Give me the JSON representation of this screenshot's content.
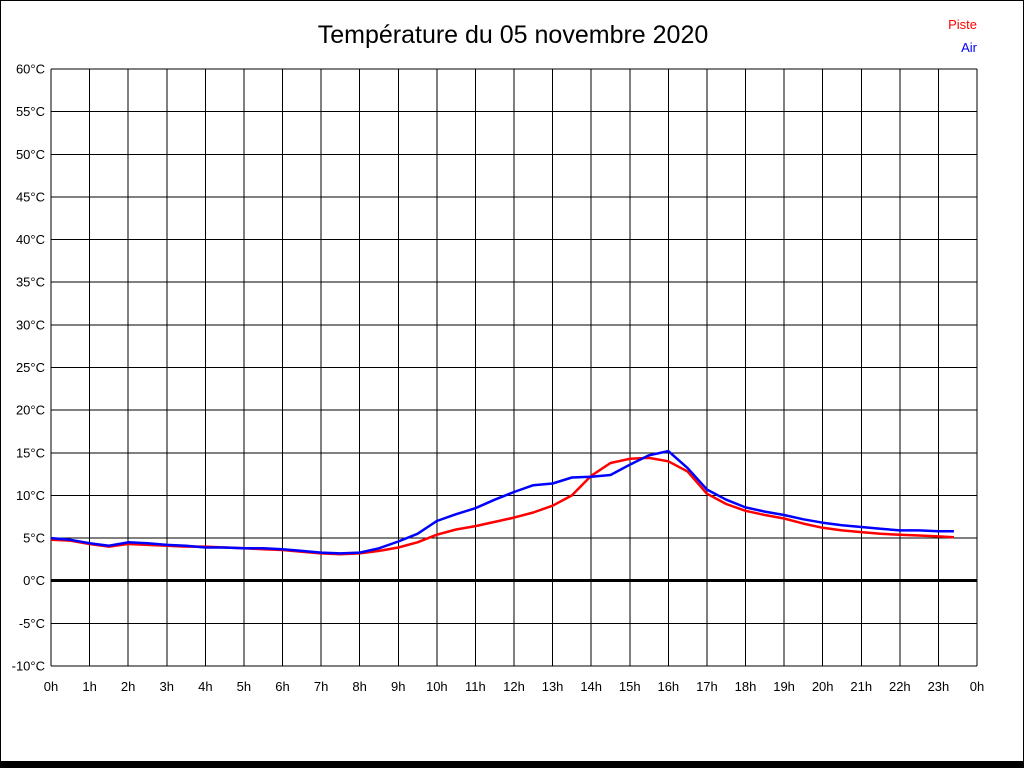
{
  "window": {
    "background": "#ffffff",
    "border_color": "#000000"
  },
  "chart_data": {
    "type": "line",
    "title": "Température du 05 novembre 2020",
    "xlabel": "",
    "ylabel": "",
    "x_unit": "hours",
    "xlim": [
      0,
      24
    ],
    "ylim": [
      -10,
      60
    ],
    "y_tick_step": 5,
    "grid": true,
    "grid_color": "#000000",
    "zero_line": true,
    "zero_line_color": "#000000",
    "legend_position": "top-right",
    "x_tick_labels": [
      "0h",
      "1h",
      "2h",
      "3h",
      "4h",
      "5h",
      "6h",
      "7h",
      "8h",
      "9h",
      "10h",
      "11h",
      "12h",
      "13h",
      "14h",
      "15h",
      "16h",
      "17h",
      "18h",
      "19h",
      "20h",
      "21h",
      "22h",
      "23h",
      "0h"
    ],
    "y_tick_labels": [
      "60°C",
      "55°C",
      "50°C",
      "45°C",
      "40°C",
      "35°C",
      "30°C",
      "25°C",
      "20°C",
      "15°C",
      "10°C",
      "5°C",
      "0°C",
      "-5°C",
      "-10°C"
    ],
    "x": [
      0,
      0.5,
      1,
      1.5,
      2,
      2.5,
      3,
      3.5,
      4,
      4.5,
      5,
      5.5,
      6,
      6.5,
      7,
      7.5,
      8,
      8.5,
      9,
      9.5,
      10,
      10.5,
      11,
      11.5,
      12,
      12.5,
      13,
      13.5,
      14,
      14.5,
      15,
      15.5,
      16,
      16.5,
      17,
      17.5,
      18,
      18.5,
      19,
      19.5,
      20,
      20.5,
      21,
      21.5,
      22,
      22.5,
      23,
      23.4
    ],
    "series": [
      {
        "name": "Piste",
        "color": "#ff0000",
        "values": [
          4.8,
          4.7,
          4.3,
          4.0,
          4.3,
          4.2,
          4.1,
          4.0,
          4.0,
          3.9,
          3.8,
          3.7,
          3.6,
          3.4,
          3.2,
          3.1,
          3.2,
          3.5,
          3.9,
          4.5,
          5.4,
          6.0,
          6.4,
          6.9,
          7.4,
          8.0,
          8.8,
          10.0,
          12.3,
          13.8,
          14.3,
          14.4,
          14.0,
          12.8,
          10.2,
          9.0,
          8.2,
          7.7,
          7.3,
          6.7,
          6.2,
          5.9,
          5.7,
          5.5,
          5.4,
          5.3,
          5.2,
          5.1
        ]
      },
      {
        "name": "Air",
        "color": "#0000ff",
        "values": [
          5.0,
          4.8,
          4.4,
          4.1,
          4.5,
          4.4,
          4.2,
          4.1,
          3.9,
          3.9,
          3.8,
          3.8,
          3.7,
          3.5,
          3.3,
          3.2,
          3.3,
          3.8,
          4.6,
          5.5,
          7.0,
          7.8,
          8.5,
          9.5,
          10.4,
          11.2,
          11.4,
          12.1,
          12.2,
          12.4,
          13.6,
          14.7,
          15.2,
          13.2,
          10.7,
          9.5,
          8.6,
          8.1,
          7.7,
          7.2,
          6.8,
          6.5,
          6.3,
          6.1,
          5.9,
          5.9,
          5.8,
          5.8
        ]
      }
    ]
  }
}
